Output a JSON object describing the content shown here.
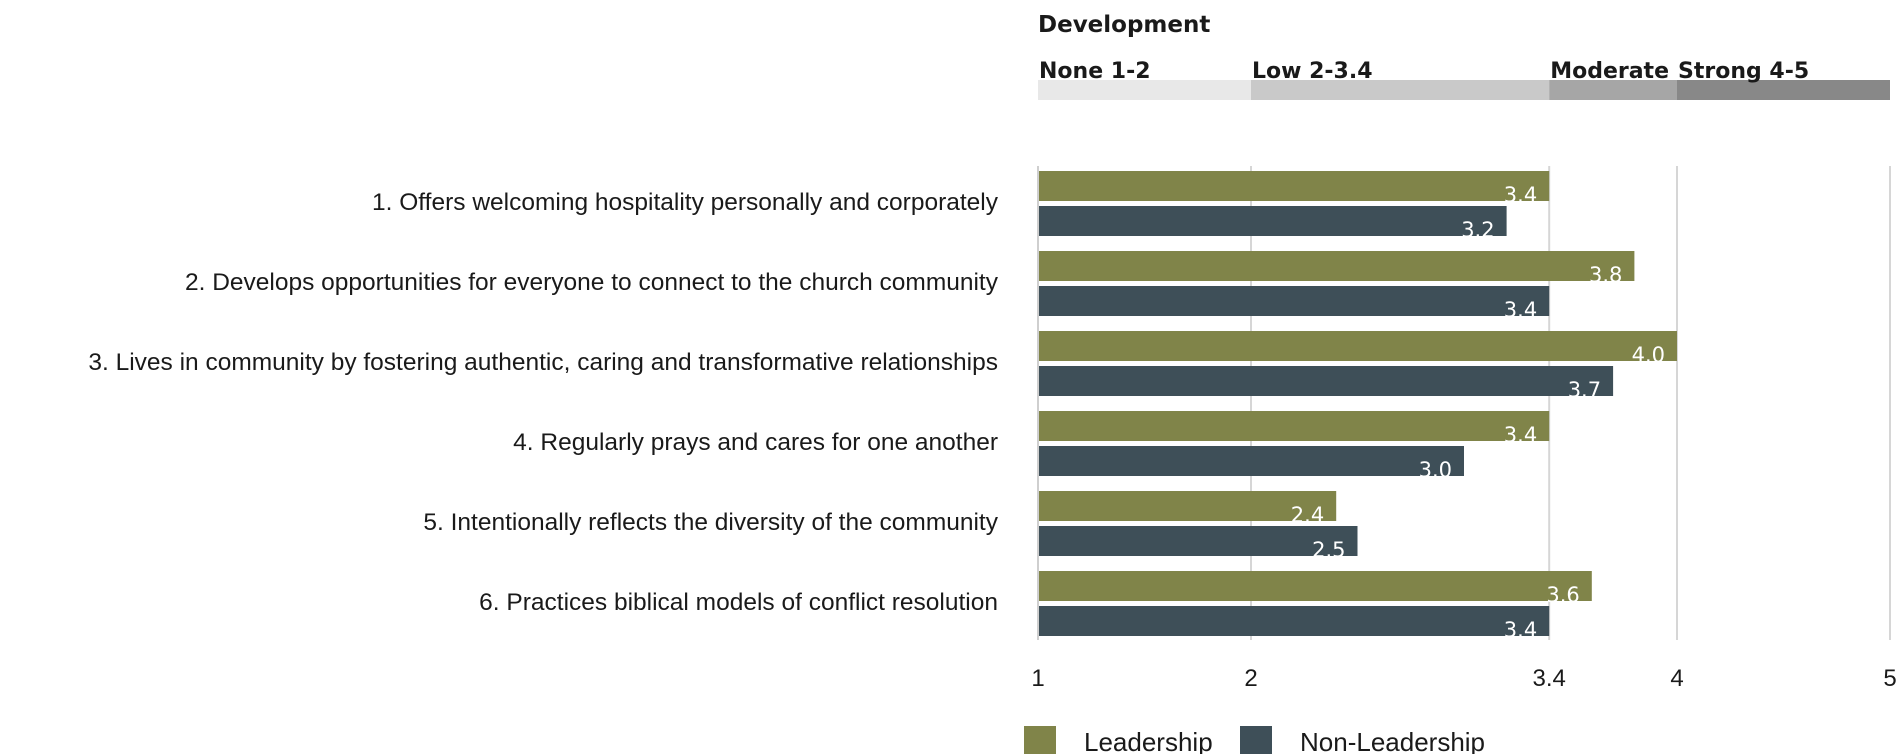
{
  "chart_data": {
    "type": "bar",
    "orientation": "horizontal",
    "categories": [
      "1. Offers welcoming hospitality personally and corporately",
      "2. Develops opportunities for everyone to connect to the church community",
      "3. Lives in community by fostering authentic, caring and transformative relationships",
      "4. Regularly prays and cares for one another",
      "5. Intentionally reflects the diversity of the community",
      "6. Practices biblical models of conflict resolution"
    ],
    "series": [
      {
        "name": "Leadership",
        "color": "#808449",
        "values": [
          3.4,
          3.8,
          4.0,
          3.4,
          2.4,
          3.6
        ],
        "labels": [
          "3.4",
          "3.8",
          "4.0",
          "3.4",
          "2.4",
          "3.6"
        ]
      },
      {
        "name": "Non-Leadership",
        "color": "#3e4f58",
        "values": [
          3.2,
          3.4,
          3.7,
          3.0,
          2.5,
          3.4
        ],
        "labels": [
          "3.2",
          "3.4",
          "3.7",
          "3.0",
          "2.5",
          "3.4"
        ]
      }
    ],
    "xlim": [
      1,
      5
    ],
    "ticks": [
      1,
      2,
      3.4,
      4,
      5
    ],
    "tick_labels": [
      "1",
      "2",
      "3.4",
      "4",
      "5"
    ],
    "scale_title": "Development",
    "bands": [
      {
        "label": "None 1-2",
        "from": 1,
        "to": 2,
        "color": "#e8e8e8"
      },
      {
        "label": "Low 2-3.4",
        "from": 2,
        "to": 3.4,
        "color": "#c9c9c9"
      },
      {
        "label": "Moderate",
        "from": 3.4,
        "to": 4,
        "color": "#a6a6a6"
      },
      {
        "label": "Strong 4-5",
        "from": 4,
        "to": 5,
        "color": "#888888"
      }
    ],
    "legend": {
      "position": "bottom"
    }
  }
}
